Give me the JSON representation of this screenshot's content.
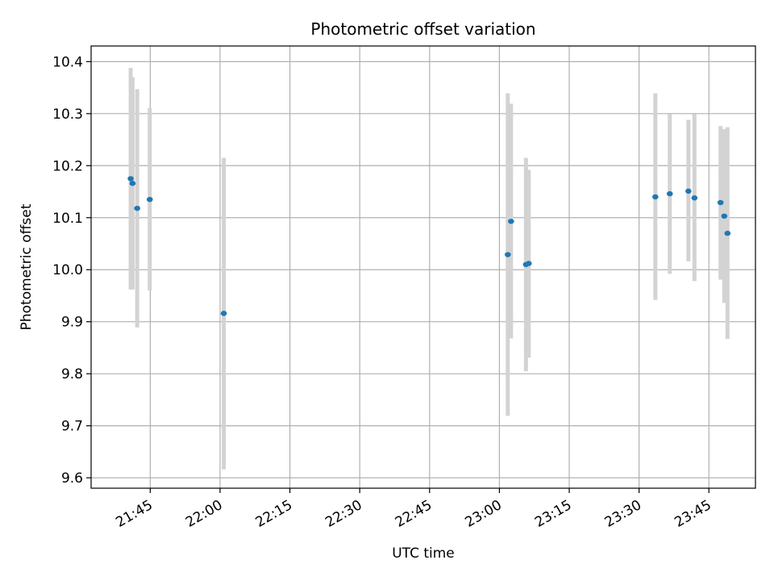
{
  "chart_data": {
    "type": "scatter",
    "title": "Photometric offset variation",
    "xlabel": "UTC time",
    "ylabel": "Photometric offset",
    "x_tick_labels": [
      "21:45",
      "22:00",
      "22:15",
      "22:30",
      "22:45",
      "23:00",
      "23:15",
      "23:30",
      "23:45"
    ],
    "x_tick_minutes": [
      1305,
      1320,
      1335,
      1350,
      1365,
      1380,
      1395,
      1410,
      1425
    ],
    "xlim_minutes": [
      1292.3,
      1435.0
    ],
    "y_ticks": [
      "9.6",
      "9.7",
      "9.8",
      "9.9",
      "10.0",
      "10.1",
      "10.2",
      "10.3",
      "10.4"
    ],
    "ylim": [
      9.58,
      10.43
    ],
    "grid": true,
    "colors": {
      "point": "#1f77b4",
      "errorbar": "#d3d3d3",
      "grid": "#b0b0b0"
    },
    "points": [
      {
        "time": "21:40:48",
        "y": 10.175,
        "ylow": 9.962,
        "yhigh": 10.388
      },
      {
        "time": "21:41:12",
        "y": 10.166,
        "ylow": 9.962,
        "yhigh": 10.37
      },
      {
        "time": "21:42:12",
        "y": 10.118,
        "ylow": 9.889,
        "yhigh": 10.347
      },
      {
        "time": "21:44:54",
        "y": 10.135,
        "ylow": 9.96,
        "yhigh": 10.311
      },
      {
        "time": "22:00:48",
        "y": 9.916,
        "ylow": 9.616,
        "yhigh": 10.215
      },
      {
        "time": "23:01:48",
        "y": 10.029,
        "ylow": 9.719,
        "yhigh": 10.339
      },
      {
        "time": "23:02:30",
        "y": 10.093,
        "ylow": 9.868,
        "yhigh": 10.319
      },
      {
        "time": "23:05:42",
        "y": 10.01,
        "ylow": 9.805,
        "yhigh": 10.215
      },
      {
        "time": "23:06:18",
        "y": 10.012,
        "ylow": 9.831,
        "yhigh": 10.192
      },
      {
        "time": "23:33:30",
        "y": 10.14,
        "ylow": 9.942,
        "yhigh": 10.339
      },
      {
        "time": "23:36:36",
        "y": 10.146,
        "ylow": 9.992,
        "yhigh": 10.299
      },
      {
        "time": "23:40:36",
        "y": 10.151,
        "ylow": 10.016,
        "yhigh": 10.288
      },
      {
        "time": "23:41:54",
        "y": 10.138,
        "ylow": 9.978,
        "yhigh": 10.299
      },
      {
        "time": "23:47:30",
        "y": 10.129,
        "ylow": 9.981,
        "yhigh": 10.276
      },
      {
        "time": "23:48:18",
        "y": 10.103,
        "ylow": 9.936,
        "yhigh": 10.27
      },
      {
        "time": "23:49:00",
        "y": 10.07,
        "ylow": 9.867,
        "yhigh": 10.274
      }
    ]
  }
}
